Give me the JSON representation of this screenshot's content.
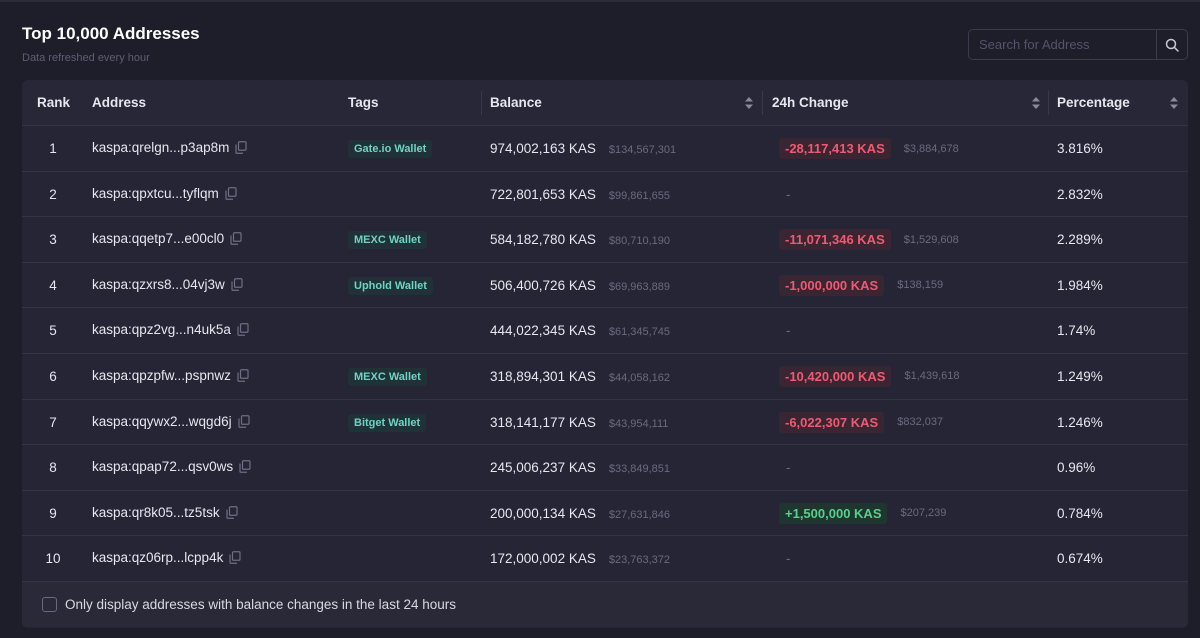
{
  "header": {
    "title": "Top 10,000 Addresses",
    "subtitle": "Data refreshed every hour",
    "search_placeholder": "Search for Address"
  },
  "table": {
    "columns": [
      "Rank",
      "Address",
      "Tags",
      "Balance",
      "24h Change",
      "Percentage"
    ],
    "rows": [
      {
        "rank": "1",
        "address": "kaspa:qrelgn...p3ap8m",
        "tag": "Gate.io Wallet",
        "balance": "974,002,163 KAS",
        "balance_usd": "$134,567,301",
        "change": "-28,117,413 KAS",
        "change_usd": "$3,884,678",
        "change_dir": "neg",
        "percentage": "3.816%"
      },
      {
        "rank": "2",
        "address": "kaspa:qpxtcu...tyflqm",
        "tag": "",
        "balance": "722,801,653 KAS",
        "balance_usd": "$99,861,655",
        "change": "-",
        "change_usd": "",
        "change_dir": "none",
        "percentage": "2.832%"
      },
      {
        "rank": "3",
        "address": "kaspa:qqetp7...e00cl0",
        "tag": "MEXC Wallet",
        "balance": "584,182,780 KAS",
        "balance_usd": "$80,710,190",
        "change": "-11,071,346 KAS",
        "change_usd": "$1,529,608",
        "change_dir": "neg",
        "percentage": "2.289%"
      },
      {
        "rank": "4",
        "address": "kaspa:qzxrs8...04vj3w",
        "tag": "Uphold Wallet",
        "balance": "506,400,726 KAS",
        "balance_usd": "$69,963,889",
        "change": "-1,000,000 KAS",
        "change_usd": "$138,159",
        "change_dir": "neg",
        "percentage": "1.984%"
      },
      {
        "rank": "5",
        "address": "kaspa:qpz2vg...n4uk5a",
        "tag": "",
        "balance": "444,022,345 KAS",
        "balance_usd": "$61,345,745",
        "change": "-",
        "change_usd": "",
        "change_dir": "none",
        "percentage": "1.74%"
      },
      {
        "rank": "6",
        "address": "kaspa:qpzpfw...pspnwz",
        "tag": "MEXC Wallet",
        "balance": "318,894,301 KAS",
        "balance_usd": "$44,058,162",
        "change": "-10,420,000 KAS",
        "change_usd": "$1,439,618",
        "change_dir": "neg",
        "percentage": "1.249%"
      },
      {
        "rank": "7",
        "address": "kaspa:qqywx2...wqgd6j",
        "tag": "Bitget Wallet",
        "balance": "318,141,177 KAS",
        "balance_usd": "$43,954,111",
        "change": "-6,022,307 KAS",
        "change_usd": "$832,037",
        "change_dir": "neg",
        "percentage": "1.246%"
      },
      {
        "rank": "8",
        "address": "kaspa:qpap72...qsv0ws",
        "tag": "",
        "balance": "245,006,237 KAS",
        "balance_usd": "$33,849,851",
        "change": "-",
        "change_usd": "",
        "change_dir": "none",
        "percentage": "0.96%"
      },
      {
        "rank": "9",
        "address": "kaspa:qr8k05...tz5tsk",
        "tag": "",
        "balance": "200,000,134 KAS",
        "balance_usd": "$27,631,846",
        "change": "+1,500,000 KAS",
        "change_usd": "$207,239",
        "change_dir": "pos",
        "percentage": "0.784%"
      },
      {
        "rank": "10",
        "address": "kaspa:qz06rp...lcpp4k",
        "tag": "",
        "balance": "172,000,002 KAS",
        "balance_usd": "$23,763,372",
        "change": "-",
        "change_usd": "",
        "change_dir": "none",
        "percentage": "0.674%"
      }
    ]
  },
  "footer": {
    "filter_label": "Only display addresses with balance changes in the last 24 hours",
    "filter_checked": false
  },
  "icons": {
    "search": "search-icon",
    "copy": "copy-icon",
    "sort": "sort-icon"
  },
  "colors": {
    "negative": "#ef5a72",
    "positive": "#56d18a",
    "tag_text": "#6fd3c3"
  }
}
